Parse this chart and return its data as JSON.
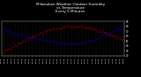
{
  "title": "Milwaukee Weather Outdoor Humidity\nvs Temperature\nEvery 5 Minutes",
  "title_fontsize": 3.0,
  "background_color": "#000000",
  "plot_bg_color": "#000000",
  "grid_color": "#444444",
  "humidity_color": "#0000ff",
  "temp_color": "#ff0000",
  "ylim_left": [
    0,
    100
  ],
  "ylim_right": [
    20,
    90
  ],
  "y_right_ticks": [
    20,
    30,
    40,
    50,
    60,
    70,
    80,
    90
  ],
  "n_points": 288,
  "figsize": [
    1.6,
    0.87
  ],
  "dpi": 100
}
